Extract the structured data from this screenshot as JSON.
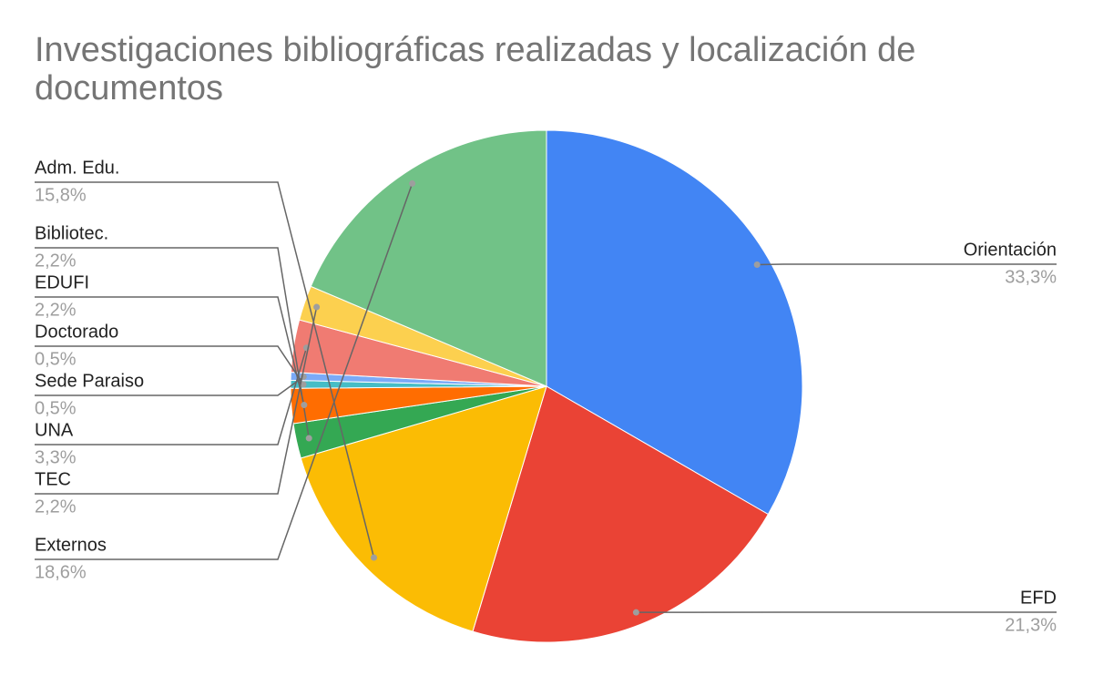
{
  "chart_data": {
    "type": "pie",
    "title": "Investigaciones bibliográficas realizadas y localización de documentos",
    "categories": [
      "Orientación",
      "EFD",
      "Adm. Edu.",
      "Bibliotec.",
      "EDUFI",
      "Doctorado",
      "Sede Paraiso",
      "UNA",
      "TEC",
      "Externos"
    ],
    "values": [
      33.3,
      21.3,
      15.8,
      2.2,
      2.2,
      0.5,
      0.5,
      3.3,
      2.2,
      18.6
    ],
    "value_labels": [
      "33,3%",
      "21,3%",
      "15,8%",
      "2,2%",
      "2,2%",
      "0,5%",
      "0,5%",
      "3,3%",
      "2,2%",
      "18,6%"
    ],
    "colors": [
      "#4285f4",
      "#ea4335",
      "#fbbc04",
      "#34a853",
      "#ff6d01",
      "#46bdc6",
      "#7baaf7",
      "#f07b72",
      "#fcd04f",
      "#71c287"
    ]
  }
}
